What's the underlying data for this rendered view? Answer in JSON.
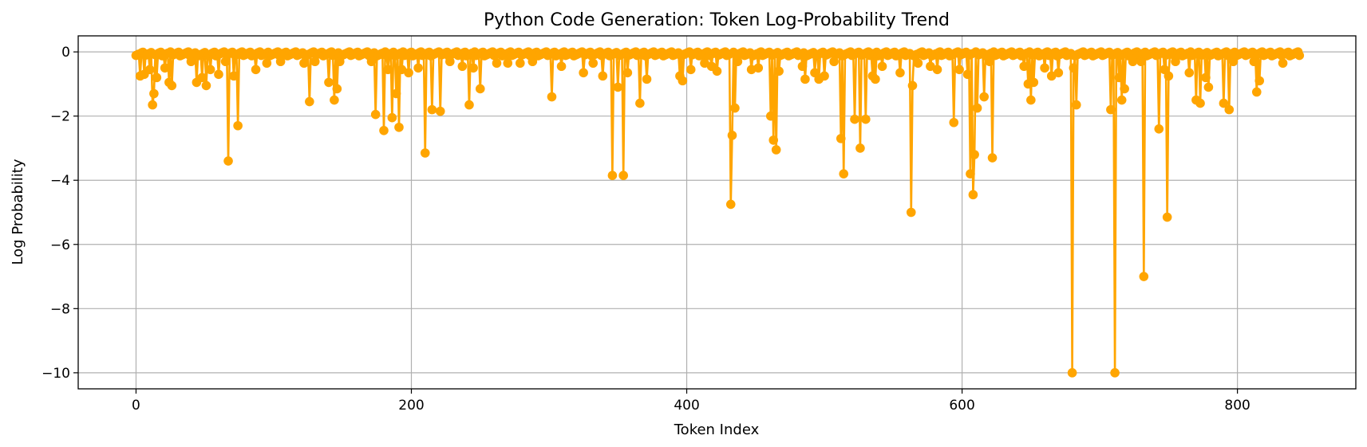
{
  "chart_data": {
    "type": "line",
    "title": "Python Code Generation: Token Log-Probability Trend",
    "xlabel": "Token Index",
    "ylabel": "Log Probability",
    "xlim": [
      -42,
      886
    ],
    "ylim": [
      -10.5,
      0.5
    ],
    "xticks": [
      0,
      200,
      400,
      600,
      800
    ],
    "yticks": [
      0,
      -2,
      -4,
      -6,
      -8,
      -10
    ],
    "grid": true,
    "legend": "none",
    "markers": true,
    "color": "#ffa500",
    "n_points": 846,
    "spikes": [
      [
        3,
        -0.75
      ],
      [
        6,
        -0.7
      ],
      [
        10,
        -0.55
      ],
      [
        12,
        -1.65
      ],
      [
        13,
        -1.3
      ],
      [
        15,
        -0.8
      ],
      [
        21,
        -0.5
      ],
      [
        24,
        -0.95
      ],
      [
        26,
        -1.05
      ],
      [
        40,
        -0.3
      ],
      [
        44,
        -0.95
      ],
      [
        48,
        -0.8
      ],
      [
        51,
        -1.05
      ],
      [
        54,
        -0.55
      ],
      [
        60,
        -0.7
      ],
      [
        65,
        -0.3
      ],
      [
        67,
        -3.4
      ],
      [
        71,
        -0.75
      ],
      [
        74,
        -2.3
      ],
      [
        87,
        -0.55
      ],
      [
        95,
        -0.35
      ],
      [
        105,
        -0.3
      ],
      [
        122,
        -0.35
      ],
      [
        126,
        -1.55
      ],
      [
        130,
        -0.3
      ],
      [
        140,
        -0.95
      ],
      [
        144,
        -1.5
      ],
      [
        146,
        -1.15
      ],
      [
        148,
        -0.3
      ],
      [
        171,
        -0.3
      ],
      [
        174,
        -1.95
      ],
      [
        180,
        -2.45
      ],
      [
        183,
        -0.55
      ],
      [
        186,
        -2.05
      ],
      [
        189,
        -1.3
      ],
      [
        191,
        -2.35
      ],
      [
        193,
        -0.55
      ],
      [
        198,
        -0.65
      ],
      [
        205,
        -0.5
      ],
      [
        210,
        -3.15
      ],
      [
        215,
        -1.8
      ],
      [
        221,
        -1.85
      ],
      [
        228,
        -0.3
      ],
      [
        237,
        -0.45
      ],
      [
        242,
        -1.65
      ],
      [
        245,
        -0.5
      ],
      [
        250,
        -1.15
      ],
      [
        262,
        -0.35
      ],
      [
        270,
        -0.35
      ],
      [
        279,
        -0.35
      ],
      [
        288,
        -0.3
      ],
      [
        302,
        -1.4
      ],
      [
        309,
        -0.45
      ],
      [
        325,
        -0.65
      ],
      [
        332,
        -0.35
      ],
      [
        339,
        -0.75
      ],
      [
        346,
        -3.85
      ],
      [
        350,
        -1.1
      ],
      [
        354,
        -3.85
      ],
      [
        357,
        -0.65
      ],
      [
        366,
        -1.6
      ],
      [
        371,
        -0.85
      ],
      [
        395,
        -0.75
      ],
      [
        397,
        -0.9
      ],
      [
        403,
        -0.55
      ],
      [
        413,
        -0.35
      ],
      [
        418,
        -0.45
      ],
      [
        422,
        -0.6
      ],
      [
        432,
        -4.75
      ],
      [
        433,
        -2.6
      ],
      [
        435,
        -1.75
      ],
      [
        437,
        -0.3
      ],
      [
        447,
        -0.55
      ],
      [
        452,
        -0.5
      ],
      [
        461,
        -2.0
      ],
      [
        463,
        -2.75
      ],
      [
        465,
        -3.05
      ],
      [
        467,
        -0.6
      ],
      [
        484,
        -0.45
      ],
      [
        486,
        -0.85
      ],
      [
        493,
        -0.65
      ],
      [
        496,
        -0.85
      ],
      [
        500,
        -0.75
      ],
      [
        507,
        -0.3
      ],
      [
        512,
        -2.7
      ],
      [
        514,
        -3.8
      ],
      [
        522,
        -2.1
      ],
      [
        526,
        -3.0
      ],
      [
        530,
        -2.1
      ],
      [
        535,
        -0.75
      ],
      [
        537,
        -0.85
      ],
      [
        542,
        -0.45
      ],
      [
        555,
        -0.65
      ],
      [
        563,
        -5.0
      ],
      [
        564,
        -1.05
      ],
      [
        568,
        -0.35
      ],
      [
        577,
        -0.45
      ],
      [
        582,
        -0.55
      ],
      [
        594,
        -2.2
      ],
      [
        598,
        -0.55
      ],
      [
        604,
        -0.7
      ],
      [
        606,
        -3.8
      ],
      [
        608,
        -4.45
      ],
      [
        609,
        -3.2
      ],
      [
        611,
        -1.75
      ],
      [
        616,
        -1.4
      ],
      [
        620,
        -0.3
      ],
      [
        622,
        -3.3
      ],
      [
        645,
        -0.45
      ],
      [
        648,
        -1.0
      ],
      [
        650,
        -1.5
      ],
      [
        652,
        -0.95
      ],
      [
        660,
        -0.5
      ],
      [
        665,
        -0.75
      ],
      [
        670,
        -0.65
      ],
      [
        680,
        -10.0
      ],
      [
        681,
        -0.5
      ],
      [
        683,
        -1.65
      ],
      [
        708,
        -1.8
      ],
      [
        711,
        -10.0
      ],
      [
        714,
        -0.8
      ],
      [
        716,
        -1.5
      ],
      [
        718,
        -1.15
      ],
      [
        724,
        -0.3
      ],
      [
        730,
        -0.3
      ],
      [
        732,
        -7.0
      ],
      [
        743,
        -2.4
      ],
      [
        747,
        -0.55
      ],
      [
        749,
        -5.15
      ],
      [
        750,
        -0.75
      ],
      [
        755,
        -0.3
      ],
      [
        765,
        -0.65
      ],
      [
        770,
        -1.5
      ],
      [
        773,
        -1.6
      ],
      [
        777,
        -0.8
      ],
      [
        779,
        -1.1
      ],
      [
        790,
        -1.6
      ],
      [
        794,
        -1.8
      ],
      [
        797,
        -0.3
      ],
      [
        812,
        -0.3
      ],
      [
        814,
        -1.25
      ],
      [
        816,
        -0.9
      ],
      [
        833,
        -0.35
      ]
    ]
  }
}
